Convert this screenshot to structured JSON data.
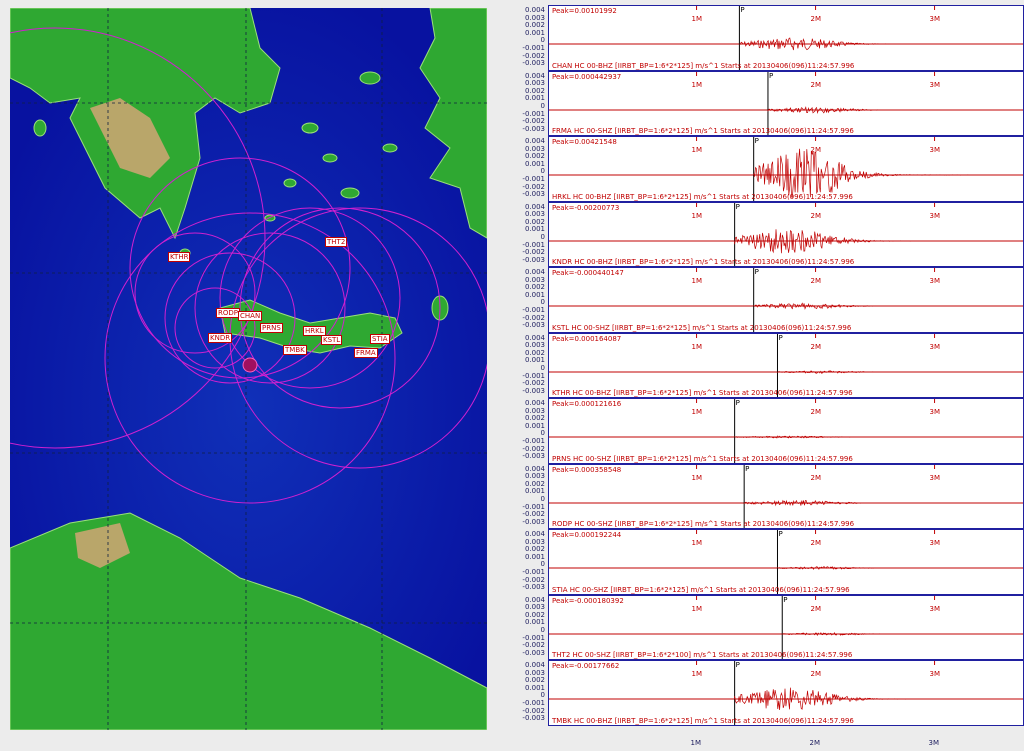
{
  "map": {
    "stations": [
      "KTHR",
      "THT2",
      "RODP",
      "CHAN",
      "PRNS",
      "HRKL",
      "KNDR",
      "KSTL",
      "TMBK",
      "STIA",
      "FRMA"
    ],
    "colors": {
      "sea": "#0a1aa8",
      "land": "#2fa832",
      "circle": "#d020d0",
      "label": "#c00000"
    }
  },
  "y_ticks": [
    "0.004",
    "0.003",
    "0.002",
    "0.001",
    "0",
    "-0.001",
    "-0.002",
    "-0.003"
  ],
  "x_ticks": [
    "1M",
    "2M",
    "3M"
  ],
  "traces": [
    {
      "station": "CHAN",
      "peak": "Peak=0.00101992",
      "info": "CHAN HC 00-BHZ  [IIRBT_BP=1:6*2*125]  m/s^1  Starts at 20130406(096)11:24:57.996",
      "amp": 0.25,
      "p": 0.4
    },
    {
      "station": "FRMA",
      "peak": "Peak=0.000442937",
      "info": "FRMA HC 00-SHZ  [IIRBT_BP=1:6*2*125]  m/s^1  Starts at 20130406(096)11:24:57.996",
      "amp": 0.11,
      "p": 0.46
    },
    {
      "station": "HRKL",
      "peak": "Peak=0.00421548",
      "info": "HRKL HC 00-BHZ  [IIRBT_BP=1:6*2*125]  m/s^1  Starts at 20130406(096)11:24:57.996",
      "amp": 1.0,
      "p": 0.43
    },
    {
      "station": "KNDR",
      "peak": "Peak=-0.00200773",
      "info": "KNDR HC 00-BHZ  [IIRBT_BP=1:6*2*125]  m/s^1  Starts at 20130406(096)11:24:57.996",
      "amp": 0.5,
      "p": 0.39
    },
    {
      "station": "KSTL",
      "peak": "Peak=-0.000440147",
      "info": "KSTL HC 00-SHZ  [IIRBT_BP=1:6*2*125]  m/s^1  Starts at 20130406(096)11:24:57.996",
      "amp": 0.11,
      "p": 0.43
    },
    {
      "station": "KTHR",
      "peak": "Peak=0.000164087",
      "info": "KTHR HC 00-BHZ  [IIRBT_BP=1:6*2*125]  m/s^1  Starts at 20130406(096)11:24:57.996",
      "amp": 0.05,
      "p": 0.48
    },
    {
      "station": "PRNS",
      "peak": "Peak=0.000121616",
      "info": "PRNS HC 00-SHZ  [IIRBT_BP=1:6*2*125]  m/s^1  Starts at 20130406(096)11:24:57.996",
      "amp": 0.04,
      "p": 0.39
    },
    {
      "station": "RODP",
      "peak": "Peak=0.000358548",
      "info": "RODP HC 00-SHZ  [IIRBT_BP=1:6*2*125]  m/s^1  Starts at 20130406(096)11:24:57.996",
      "amp": 0.1,
      "p": 0.41
    },
    {
      "station": "STIA",
      "peak": "Peak=0.000192244",
      "info": "STIA HC 00-SHZ  [IIRBT_BP=1:6*2*125]  m/s^1  Starts at 20130406(096)11:24:57.996",
      "amp": 0.05,
      "p": 0.48
    },
    {
      "station": "THT2",
      "peak": "Peak=-0.000180392",
      "info": "THT2 HC 00-SHZ  [IIRBT_BP=1:6*2*100]  m/s^1  Starts at 20130406(096)11:24:57.996",
      "amp": 0.05,
      "p": 0.49
    },
    {
      "station": "TMBK",
      "peak": "Peak=-0.00177662",
      "info": "TMBK HC 00-BHZ  [IIRBT_BP=1:6*2*125]  m/s^1  Starts at 20130406(096)11:24:57.996",
      "amp": 0.45,
      "p": 0.39
    }
  ]
}
